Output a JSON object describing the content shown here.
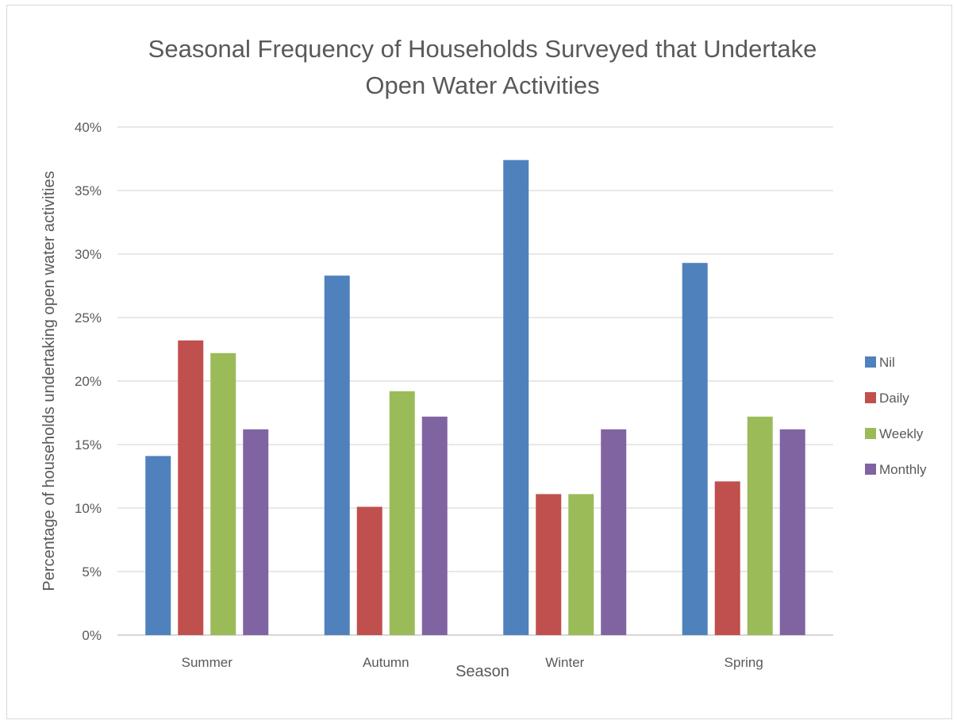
{
  "chart_data": {
    "type": "bar",
    "title": "Seasonal Frequency of Households Surveyed that Undertake Open Water Activities",
    "title_lines": [
      "Seasonal Frequency of Households Surveyed that Undertake",
      "Open Water Activities"
    ],
    "xlabel": "Season",
    "ylabel": "Percentage of households undertaking open water activities",
    "categories": [
      "Summer",
      "Autumn",
      "Winter",
      "Spring"
    ],
    "ylim": [
      0,
      40
    ],
    "yticks": [
      "0%",
      "5%",
      "10%",
      "15%",
      "20%",
      "25%",
      "30%",
      "35%",
      "40%"
    ],
    "grid": true,
    "legend_position": "right",
    "series": [
      {
        "name": "Nil",
        "color": "#4f81bd",
        "values": [
          14.1,
          28.3,
          37.4,
          29.3
        ]
      },
      {
        "name": "Daily",
        "color": "#c0504d",
        "values": [
          23.2,
          10.1,
          11.1,
          12.1
        ]
      },
      {
        "name": "Weekly",
        "color": "#9bbb59",
        "values": [
          22.2,
          19.2,
          11.1,
          17.2
        ]
      },
      {
        "name": "Monthly",
        "color": "#8064a2",
        "values": [
          16.2,
          17.2,
          16.2,
          16.2
        ]
      }
    ]
  }
}
